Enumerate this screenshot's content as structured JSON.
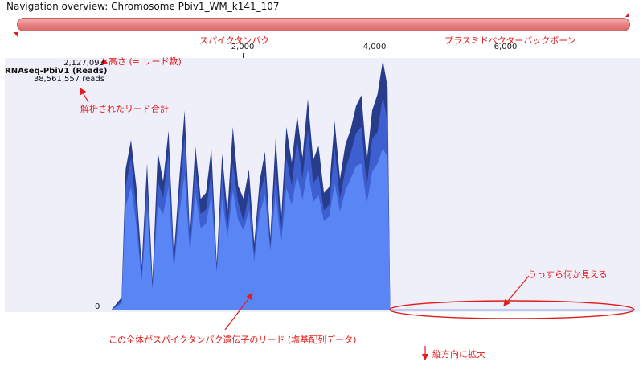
{
  "window": {
    "title": "Navigation overview: Chromosome Pbiv1_WM_k141_107"
  },
  "colors": {
    "nav_bar": "#e77f7f",
    "annotation": "#e21b1b",
    "coverage_dark": "#283c8c",
    "coverage_mid": "#3e5fd0",
    "coverage_light": "#5a86f5",
    "track_background": "#efeffa"
  },
  "ruler": {
    "ticks": [
      "2,000",
      "4,000",
      "6,000"
    ]
  },
  "track": {
    "max_reads": "2,127,093",
    "name": "RNAseq-PbiV1 (Reads)",
    "total_reads": "38,561,557 reads",
    "zero_label": "0"
  },
  "annotations": {
    "spike": "スパイクタンパク",
    "plasmid": "プラスミドベクターバックボーン",
    "height": "高さ (= リード数)",
    "total": "解析されたリード合計",
    "faint": "うっすら何か見える",
    "whole_gene": "この全体がスパイクタンパク遺伝子のリード (塩基配列データ)",
    "zoom": "縦方向に拡大"
  },
  "chart_data": {
    "type": "area",
    "x_unit": "bp",
    "xlim": [
      0,
      7800
    ],
    "ylim": [
      0,
      2127093
    ],
    "series": [
      {
        "x": [
          0,
          160,
          220,
          300,
          380,
          460,
          540,
          620,
          700,
          780,
          860,
          940,
          1020,
          1100,
          1180,
          1260,
          1340,
          1420,
          1500,
          1580,
          1660,
          1740,
          1820,
          1900,
          1980,
          2060,
          2140,
          2220,
          2300,
          2380,
          2460,
          2540,
          2620,
          2700,
          2780,
          2860,
          2940,
          3020,
          3100,
          3180,
          3260,
          3340,
          3420,
          3500,
          3580,
          3660,
          3740,
          3820,
          3900,
          3980,
          4060,
          4130,
          4170,
          4200,
          7800
        ],
        "values_dark": [
          0,
          110000,
          1200000,
          1450000,
          1050000,
          380000,
          1250000,
          260000,
          1350000,
          1100000,
          1530000,
          470000,
          1110000,
          1700000,
          630000,
          1400000,
          950000,
          1000000,
          1380000,
          400000,
          1330000,
          840000,
          1560000,
          1060000,
          950000,
          1200000,
          570000,
          1100000,
          1350000,
          620000,
          1470000,
          760000,
          1560000,
          1260000,
          1660000,
          1300000,
          1800000,
          1280000,
          1400000,
          1000000,
          1050000,
          1610000,
          1120000,
          1410000,
          1540000,
          1740000,
          1830000,
          1270000,
          1700000,
          1840000,
          2127093,
          1900000,
          0,
          0,
          0
        ],
        "values_mid": [
          0,
          80000,
          1050000,
          1300000,
          850000,
          300000,
          1050000,
          200000,
          1100000,
          960000,
          1340000,
          380000,
          960000,
          1480000,
          550000,
          1220000,
          820000,
          860000,
          1180000,
          350000,
          1180000,
          700000,
          1250000,
          920000,
          760000,
          1000000,
          480000,
          980000,
          1150000,
          550000,
          1210000,
          640000,
          1300000,
          1060000,
          1460000,
          1120000,
          1540000,
          1080000,
          1150000,
          850000,
          900000,
          1380000,
          950000,
          1200000,
          1340000,
          1510000,
          1560000,
          1050000,
          1460000,
          1520000,
          1820000,
          1600000,
          0,
          0,
          0
        ],
        "values_light": [
          0,
          60000,
          880000,
          1050000,
          720000,
          250000,
          860000,
          180000,
          900000,
          820000,
          1050000,
          340000,
          820000,
          1150000,
          480000,
          1000000,
          700000,
          740000,
          980000,
          320000,
          960000,
          620000,
          1020000,
          770000,
          680000,
          850000,
          420000,
          820000,
          980000,
          500000,
          1000000,
          560000,
          1040000,
          900000,
          1150000,
          940000,
          1200000,
          920000,
          980000,
          760000,
          800000,
          1080000,
          840000,
          1020000,
          1120000,
          1230000,
          1250000,
          900000,
          1180000,
          1250000,
          1380000,
          1300000,
          0,
          0,
          0
        ]
      },
      {
        "name": "plasmid_backbone",
        "x": [
          4200,
          7800
        ],
        "values": [
          0,
          0
        ]
      }
    ]
  }
}
